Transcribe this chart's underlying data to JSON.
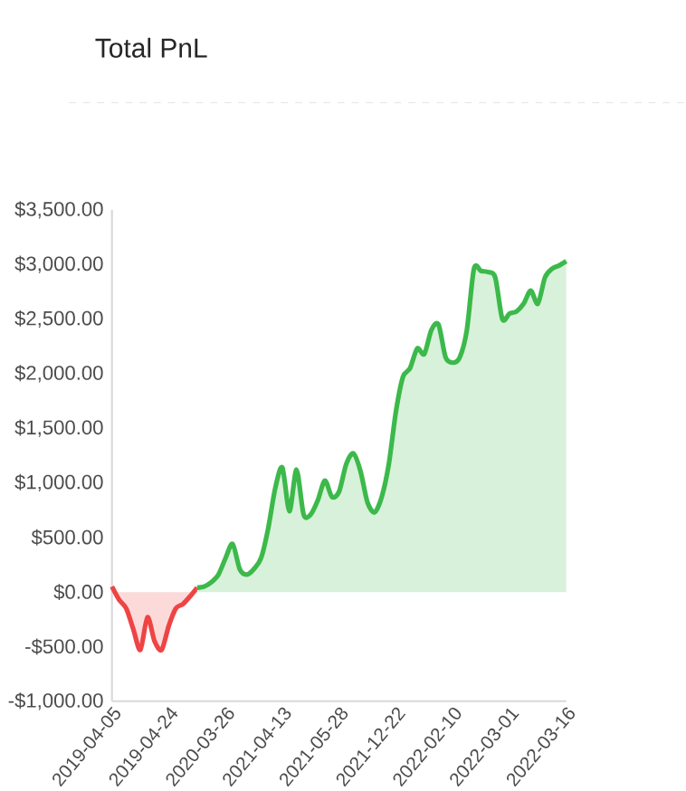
{
  "chart_data": {
    "type": "area",
    "title": "Total PnL",
    "categories": [
      "2019-04-05",
      null,
      null,
      null,
      null,
      null,
      null,
      null,
      "2019-04-24",
      null,
      null,
      null,
      null,
      null,
      null,
      null,
      "2020-03-26",
      null,
      null,
      null,
      null,
      null,
      null,
      null,
      "2021-04-13",
      null,
      null,
      null,
      null,
      null,
      null,
      null,
      "2021-05-28",
      null,
      null,
      null,
      null,
      null,
      null,
      null,
      "2021-12-22",
      null,
      null,
      null,
      null,
      null,
      null,
      null,
      "2022-02-10",
      null,
      null,
      null,
      null,
      null,
      null,
      null,
      "2022-03-01",
      null,
      null,
      null,
      null,
      null,
      null,
      null,
      "2022-03-16"
    ],
    "series": [
      {
        "color": "#ef4444",
        "values": [
          50,
          -70,
          -150,
          -340,
          -530,
          -230,
          -450,
          -530,
          -310,
          -150,
          -110,
          -40,
          40,
          null,
          null,
          null,
          null,
          null,
          null,
          null,
          null,
          null,
          null,
          null,
          null,
          null,
          null,
          null,
          null,
          null,
          null,
          null,
          null,
          null,
          null,
          null,
          null,
          null,
          null,
          null,
          null,
          null,
          null,
          null,
          null,
          null,
          null,
          null,
          null,
          null,
          null,
          null,
          null,
          null,
          null,
          null,
          null,
          null,
          null,
          null,
          null,
          null,
          null,
          null,
          null
        ]
      },
      {
        "color": "#3cb94a",
        "values": [
          null,
          null,
          null,
          null,
          null,
          null,
          null,
          null,
          null,
          null,
          null,
          null,
          40,
          50,
          90,
          160,
          310,
          440,
          210,
          160,
          210,
          310,
          580,
          950,
          1140,
          740,
          1120,
          710,
          710,
          840,
          1020,
          870,
          920,
          1170,
          1270,
          1110,
          820,
          730,
          870,
          1170,
          1650,
          1970,
          2050,
          2230,
          2180,
          2400,
          2450,
          2150,
          2100,
          2150,
          2400,
          2960,
          2940,
          2930,
          2880,
          2500,
          2550,
          2570,
          2640,
          2760,
          2640,
          2880,
          2960,
          2990,
          3030
        ]
      }
    ],
    "ylim": [
      -1000,
      3500
    ],
    "yticks": [
      {
        "value": -1000,
        "label": "-$1,000.00"
      },
      {
        "value": -500,
        "label": "-$500.00"
      },
      {
        "value": 0,
        "label": "$0.00"
      },
      {
        "value": 500,
        "label": "$500.00"
      },
      {
        "value": 1000,
        "label": "$1,000.00"
      },
      {
        "value": 1500,
        "label": "$1,500.00"
      },
      {
        "value": 2000,
        "label": "$2,000.00"
      },
      {
        "value": 2500,
        "label": "$2,500.00"
      },
      {
        "value": 3000,
        "label": "$3,000.00"
      },
      {
        "value": 3500,
        "label": "$3,500.00"
      }
    ],
    "grid": false
  }
}
